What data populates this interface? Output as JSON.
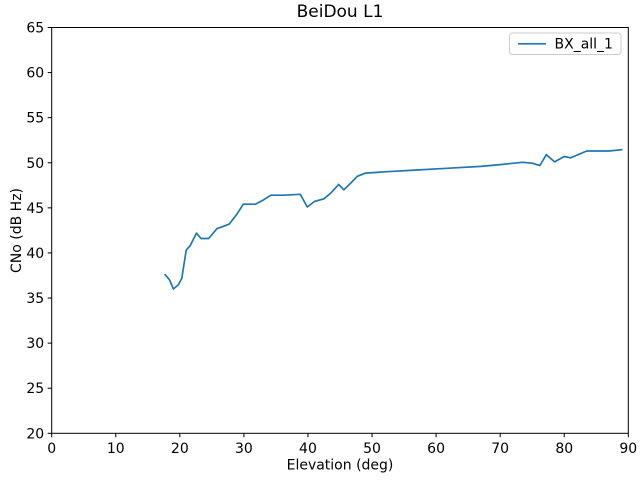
{
  "chart_data": {
    "type": "line",
    "title": "BeiDou L1",
    "xlabel": "Elevation (deg)",
    "ylabel": "CNo (dB Hz)",
    "xlim": [
      0,
      90
    ],
    "ylim": [
      20,
      65
    ],
    "xticks": [
      0,
      10,
      20,
      30,
      40,
      50,
      60,
      70,
      80,
      90
    ],
    "yticks": [
      20,
      25,
      30,
      35,
      40,
      45,
      50,
      55,
      60,
      65
    ],
    "grid": false,
    "legend_position": "upper right",
    "colors": {
      "line": "#1f77b4",
      "spine": "#000000",
      "legend_border": "#cccccc",
      "background": "#ffffff"
    },
    "series": [
      {
        "name": "BX_all_1",
        "color": "#1f77b4",
        "x": [
          17.7,
          18.4,
          19.0,
          19.8,
          20.3,
          21.0,
          21.6,
          22.6,
          23.3,
          24.5,
          25.8,
          26.6,
          27.7,
          28.9,
          29.9,
          31.8,
          33.1,
          34.2,
          36.2,
          38.8,
          39.9,
          41.0,
          42.5,
          43.5,
          44.8,
          45.6,
          46.6,
          47.7,
          49.0,
          52.0,
          57.0,
          62.0,
          67.0,
          70.0,
          73.5,
          75.0,
          76.2,
          77.2,
          78.5,
          80.0,
          81.0,
          83.5,
          87.0,
          89.0
        ],
        "y": [
          37.6,
          37.0,
          36.0,
          36.5,
          37.2,
          40.3,
          40.8,
          42.2,
          41.6,
          41.6,
          42.7,
          42.9,
          43.2,
          44.3,
          45.4,
          45.4,
          45.9,
          46.4,
          46.4,
          46.5,
          45.1,
          45.7,
          46.0,
          46.6,
          47.6,
          47.0,
          47.7,
          48.5,
          48.85,
          49.0,
          49.2,
          49.4,
          49.6,
          49.8,
          50.05,
          49.95,
          49.7,
          50.9,
          50.1,
          50.7,
          50.55,
          51.3,
          51.3,
          51.45
        ]
      }
    ]
  }
}
